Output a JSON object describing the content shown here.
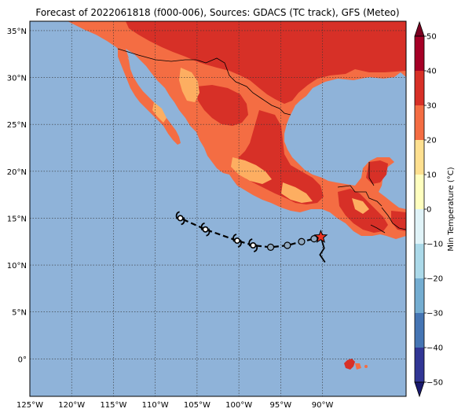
{
  "title": "Forecast of 2022061818 (f000-006), Sources: GDACS (TC track), GFS (Meteo)",
  "map": {
    "lon_range": [
      -125,
      -80
    ],
    "lat_range": [
      -4,
      36
    ],
    "grid": true,
    "ocean_color": "#8fb3d9",
    "lon_ticks": [
      {
        "value": -125,
        "label": "125°W"
      },
      {
        "value": -120,
        "label": "120°W"
      },
      {
        "value": -115,
        "label": "115°W"
      },
      {
        "value": -110,
        "label": "110°W"
      },
      {
        "value": -105,
        "label": "105°W"
      },
      {
        "value": -100,
        "label": "100°W"
      },
      {
        "value": -95,
        "label": "95°W"
      },
      {
        "value": -90,
        "label": "90°W"
      }
    ],
    "lat_ticks": [
      {
        "value": 35,
        "label": "35°N"
      },
      {
        "value": 30,
        "label": "30°N"
      },
      {
        "value": 25,
        "label": "25°N"
      },
      {
        "value": 20,
        "label": "20°N"
      },
      {
        "value": 15,
        "label": "15°N"
      },
      {
        "value": 10,
        "label": "10°N"
      },
      {
        "value": 5,
        "label": "5°N"
      },
      {
        "value": 0,
        "label": "0°"
      }
    ]
  },
  "track": {
    "line_style": "dashed",
    "current_position": {
      "lon": -90.2,
      "lat": 13.0,
      "marker": "star",
      "color": "#ee3322"
    },
    "forecast_points": [
      {
        "lon": -91.0,
        "lat": 12.8,
        "symbol": "circle"
      },
      {
        "lon": -92.5,
        "lat": 12.5,
        "symbol": "circle"
      },
      {
        "lon": -94.2,
        "lat": 12.1,
        "symbol": "circle"
      },
      {
        "lon": -96.2,
        "lat": 11.9,
        "symbol": "circle"
      },
      {
        "lon": -98.3,
        "lat": 12.1,
        "symbol": "tropical-storm"
      },
      {
        "lon": -100.2,
        "lat": 12.6,
        "symbol": "tropical-storm"
      },
      {
        "lon": -104.0,
        "lat": 13.8,
        "symbol": "tropical-storm"
      },
      {
        "lon": -107.0,
        "lat": 15.0,
        "symbol": "tropical-storm"
      }
    ],
    "past_path": [
      {
        "lon": -90.2,
        "lat": 13.0
      },
      {
        "lon": -89.8,
        "lat": 11.8
      },
      {
        "lon": -90.3,
        "lat": 11.1
      },
      {
        "lon": -89.7,
        "lat": 10.3
      }
    ]
  },
  "colorbar": {
    "label": "Min Temperature (°C)",
    "min": -50,
    "max": 50,
    "extend": "both",
    "ticks": [
      {
        "value": 50,
        "label": "50"
      },
      {
        "value": 40,
        "label": "40"
      },
      {
        "value": 30,
        "label": "30"
      },
      {
        "value": 20,
        "label": "20"
      },
      {
        "value": 10,
        "label": "10"
      },
      {
        "value": 0,
        "label": "0"
      },
      {
        "value": -10,
        "label": "−10"
      },
      {
        "value": -20,
        "label": "−20"
      },
      {
        "value": -30,
        "label": "−30"
      },
      {
        "value": -40,
        "label": "−40"
      },
      {
        "value": -50,
        "label": "−50"
      }
    ],
    "bands": [
      {
        "from": -50,
        "to": -40,
        "color": "#313695"
      },
      {
        "from": -40,
        "to": -30,
        "color": "#4575b4"
      },
      {
        "from": -30,
        "to": -20,
        "color": "#74add1"
      },
      {
        "from": -20,
        "to": -10,
        "color": "#abd9e9"
      },
      {
        "from": -10,
        "to": 0,
        "color": "#e0f3f8"
      },
      {
        "from": 0,
        "to": 10,
        "color": "#ffffbf"
      },
      {
        "from": 10,
        "to": 20,
        "color": "#fee090"
      },
      {
        "from": 20,
        "to": 30,
        "color": "#f46d43"
      },
      {
        "from": 30,
        "to": 40,
        "color": "#d73027"
      },
      {
        "from": 40,
        "to": 50,
        "color": "#a50026"
      }
    ],
    "under_color": "#1a1a6e",
    "over_color": "#7a0020"
  },
  "land_colors": {
    "hot": "#d73027",
    "warm": "#f46d43",
    "mild": "#fdae61"
  }
}
